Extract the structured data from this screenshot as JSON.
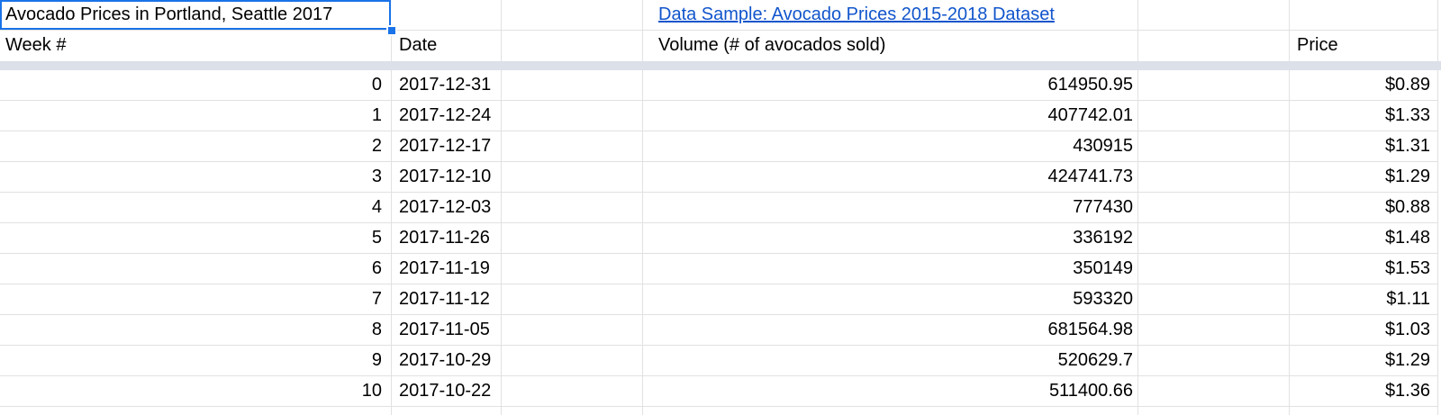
{
  "sheet": {
    "title_cell": "Avocado Prices in Portland, Seattle 2017",
    "link_cell": "Data Sample: Avocado Prices 2015-2018 Dataset",
    "headers": {
      "week": "Week #",
      "date": "Date",
      "volume": "Volume (# of avocados sold)",
      "price": "Price"
    },
    "rows": [
      {
        "week": "0",
        "date": "2017-12-31",
        "volume": "614950.95",
        "price": "$0.89"
      },
      {
        "week": "1",
        "date": "2017-12-24",
        "volume": "407742.01",
        "price": "$1.33"
      },
      {
        "week": "2",
        "date": "2017-12-17",
        "volume": "430915",
        "price": "$1.31"
      },
      {
        "week": "3",
        "date": "2017-12-10",
        "volume": "424741.73",
        "price": "$1.29"
      },
      {
        "week": "4",
        "date": "2017-12-03",
        "volume": "777430",
        "price": "$0.88"
      },
      {
        "week": "5",
        "date": "2017-11-26",
        "volume": "336192",
        "price": "$1.48"
      },
      {
        "week": "6",
        "date": "2017-11-19",
        "volume": "350149",
        "price": "$1.53"
      },
      {
        "week": "7",
        "date": "2017-11-12",
        "volume": "593320",
        "price": "$1.11"
      },
      {
        "week": "8",
        "date": "2017-11-05",
        "volume": "681564.98",
        "price": "$1.03"
      },
      {
        "week": "9",
        "date": "2017-10-29",
        "volume": "520629.7",
        "price": "$1.29"
      },
      {
        "week": "10",
        "date": "2017-10-22",
        "volume": "511400.66",
        "price": "$1.36"
      }
    ],
    "colors": {
      "selection_border": "#1a73e8",
      "link": "#1155cc",
      "gridline": "#e1e1e1",
      "frozen_divider": "#dce0e8",
      "cell_background": "#ffffff",
      "text": "#000000"
    }
  }
}
